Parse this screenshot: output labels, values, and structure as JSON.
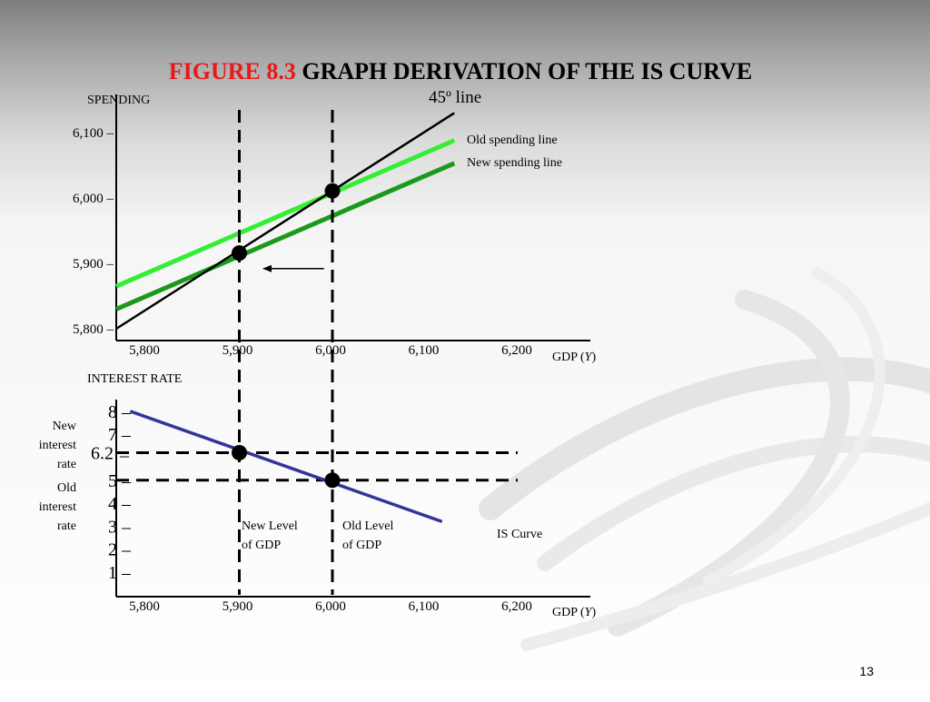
{
  "slide": {
    "title_prefix": "FIGURE 8.3",
    "title_main": " GRAPH DERIVATION OF THE IS CURVE",
    "page_number": "13",
    "colors": {
      "title_prefix": "#e8191b",
      "title_main": "#000000",
      "old_spending_line": "#33ee33",
      "new_spending_line": "#1a9a1a",
      "is_curve": "#333399"
    }
  },
  "chart_data": [
    {
      "type": "line",
      "ylabel": "SPENDING",
      "xlabel_prefix": "GDP (",
      "xlabel_var": "Y",
      "xlabel_suffix": ")",
      "x_ticks": [
        5800,
        5900,
        6000,
        6100,
        6200
      ],
      "x_tick_labels": [
        "5,800",
        "5,900",
        "6,000",
        "6,100",
        "6,200"
      ],
      "y_ticks": [
        5800,
        5900,
        6000,
        6100
      ],
      "y_tick_labels": [
        "5,800 –",
        "5,900 –",
        "6,000 –",
        "6,100 –"
      ],
      "xlim": [
        5800,
        6250
      ],
      "ylim": [
        5780,
        6120
      ],
      "series": [
        {
          "name": "45º line",
          "points": [
            [
              5800,
              5800
            ],
            [
              6130,
              6130
            ]
          ]
        },
        {
          "name": "Old spending line",
          "points": [
            [
              5800,
              5865
            ],
            [
              6130,
              6088
            ]
          ]
        },
        {
          "name": "New spending line",
          "points": [
            [
              5800,
              5830
            ],
            [
              6130,
              6053
            ]
          ]
        }
      ],
      "equilibrium_points": [
        [
          5900,
          5913
        ],
        [
          6000,
          6008
        ]
      ],
      "shift_arrow": {
        "from": [
          5990,
          5892
        ],
        "to": [
          5925,
          5892
        ]
      }
    },
    {
      "type": "line",
      "ylabel": "INTEREST RATE",
      "xlabel_prefix": "GDP (",
      "xlabel_var": "Y",
      "xlabel_suffix": ")",
      "x_ticks": [
        5800,
        5900,
        6000,
        6100,
        6200
      ],
      "x_tick_labels": [
        "5,800",
        "5,900",
        "6,000",
        "6,100",
        "6,200"
      ],
      "y_ticks": [
        1,
        2,
        3,
        4,
        5,
        7,
        8
      ],
      "y_tick_labels": [
        "1 –",
        "2 –",
        "3 –",
        "4 –",
        "5 –",
        "7 –",
        "8 –"
      ],
      "highlight_tick": {
        "value": 6.2,
        "label": "6.2"
      },
      "xlim": [
        5800,
        6250
      ],
      "ylim": [
        0,
        8.5
      ],
      "series": [
        {
          "name": "IS Curve",
          "points": [
            [
              5815,
              8.0
            ],
            [
              6150,
              3.2
            ]
          ]
        }
      ],
      "points": [
        [
          5900,
          6.2
        ],
        [
          6000,
          5.0
        ]
      ],
      "annotations": {
        "new_rate": [
          "New",
          "interest",
          "rate"
        ],
        "old_rate": [
          "Old",
          "interest",
          "rate"
        ],
        "new_level": [
          "New Level",
          "of  GDP"
        ],
        "old_level": [
          "Old Level",
          "of  GDP"
        ],
        "is_label": "IS Curve"
      }
    }
  ]
}
